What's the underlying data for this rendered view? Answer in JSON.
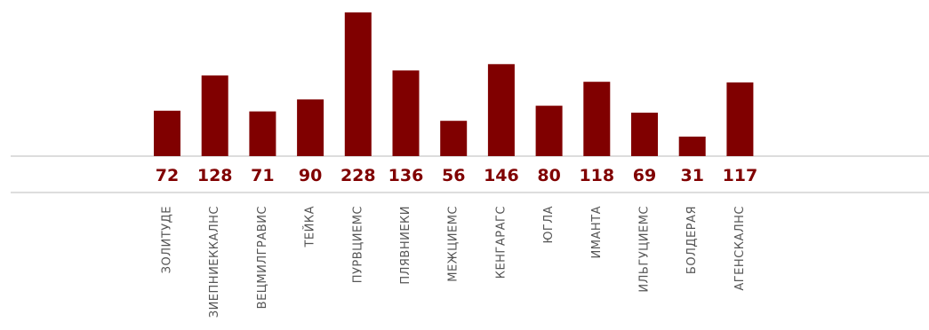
{
  "chart_data": {
    "type": "bar",
    "categories": [
      "ЗОЛИТУДЕ",
      "ЗИЕПНИЕККАЛНС",
      "ВЕЦМИЛГРАВИС",
      "ТЕЙКА",
      "ПУРВЦИЕМС",
      "ПЛЯВНИЕКИ",
      "МЕЖЦИЕМС",
      "КЕНГАРАГС",
      "ЮГЛА",
      "ИМАНТА",
      "ИЛЬГУЦИЕМС",
      "БОЛДЕРАЯ",
      "АГЕНСКАЛНС"
    ],
    "values": [
      72,
      128,
      71,
      90,
      228,
      136,
      56,
      146,
      80,
      118,
      69,
      31,
      117
    ],
    "title": "",
    "xlabel": "",
    "ylabel": "",
    "ylim": [
      0,
      228
    ],
    "grid": false,
    "data_labels": "below-baseline",
    "colors": {
      "bar": "#800000",
      "value_label": "#800000",
      "category_label": "#555555",
      "rule": "#bbbbbb"
    }
  }
}
